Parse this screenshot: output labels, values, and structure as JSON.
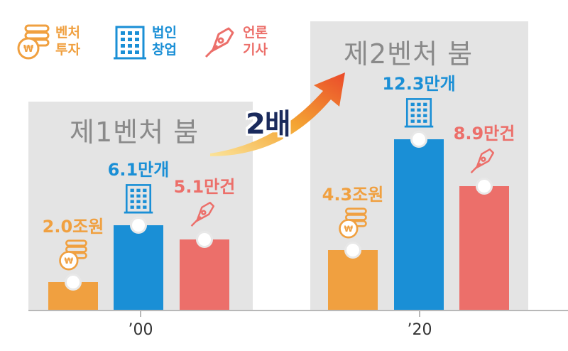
{
  "legend": {
    "items": [
      {
        "label_line1": "벤처",
        "label_line2": "투자",
        "color": "#f0a040",
        "icon": "coin-stack-icon"
      },
      {
        "label_line1": "법인",
        "label_line2": "창업",
        "color": "#1a8fd6",
        "icon": "building-icon"
      },
      {
        "label_line1": "언론",
        "label_line2": "기사",
        "color": "#ec6f6a",
        "icon": "pen-nib-icon"
      }
    ]
  },
  "eras": [
    {
      "title": "제1벤처 붐",
      "x_label": "’00"
    },
    {
      "title": "제2벤처 붐",
      "x_label": "’20"
    }
  ],
  "growth_label": "2배",
  "chart_data": {
    "type": "bar",
    "categories": [
      "’00",
      "’20"
    ],
    "series": [
      {
        "name": "벤처투자",
        "values": [
          2.0,
          4.3
        ],
        "labels": [
          "2.0조원",
          "4.3조원"
        ],
        "color": "#f0a040"
      },
      {
        "name": "법인창업",
        "values": [
          6.1,
          12.3
        ],
        "labels": [
          "6.1만개",
          "12.3만개"
        ],
        "color": "#1a8fd6"
      },
      {
        "name": "언론기사",
        "values": [
          5.1,
          8.9
        ],
        "labels": [
          "5.1만건",
          "8.9만건"
        ],
        "color": "#ec6f6a"
      }
    ]
  }
}
